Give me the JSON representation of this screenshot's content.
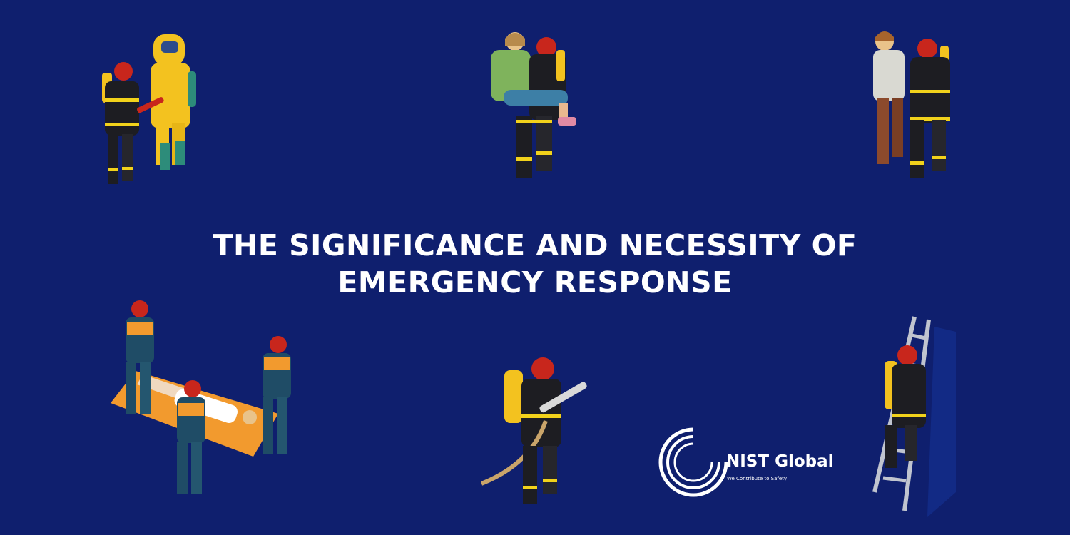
{
  "headline": {
    "line1": "THE SIGNIFICANCE AND NECESSITY OF",
    "line2": "EMERGENCY RESPONSE"
  },
  "logo": {
    "name": "NIST Global",
    "tagline": "We Contribute to Safety"
  },
  "colors": {
    "background": "#0f1f6e",
    "helmet": "#c8261c",
    "suit": "#1d1d22",
    "reflective": "#f2d21b",
    "hazmat": "#f3c21f",
    "stretcher": "#f29a2e",
    "medic": "#1f4c66",
    "text": "#ffffff"
  },
  "illustrations": [
    "firefighter-with-hazmat-suit",
    "firefighter-carrying-person",
    "firefighter-assisting-injured-person",
    "medics-carrying-stretcher",
    "firefighter-with-hose",
    "firefighter-climbing-ladder"
  ]
}
